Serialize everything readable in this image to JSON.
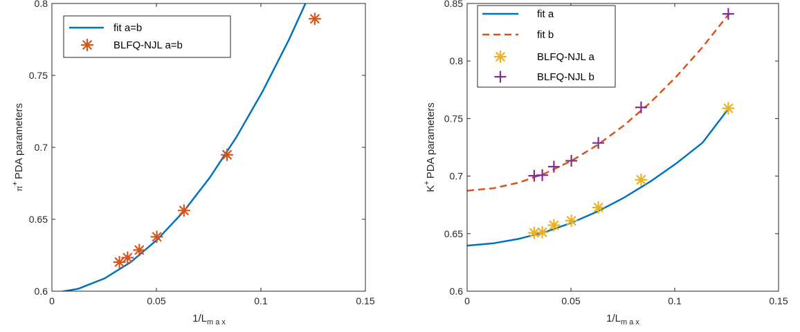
{
  "charts": [
    {
      "xlabel": {
        "main": "1/L",
        "sub": "m a x"
      },
      "ylabel": {
        "sup": "+",
        "main": "PDA parameters",
        "prefix": "π"
      },
      "xlim": [
        0,
        0.15
      ],
      "ylim": [
        0.6,
        0.8
      ],
      "xticks": [
        "0",
        "0.05",
        "0.1",
        "0.15"
      ],
      "yticks": [
        "0.6",
        "0.65",
        "0.7",
        "0.75",
        "0.8"
      ],
      "legend_position": "top-left"
    },
    {
      "xlabel": {
        "main": "1/L",
        "sub": "m a x"
      },
      "ylabel": {
        "sup": "+",
        "main": "PDA parameters",
        "prefix": "K"
      },
      "xlim": [
        0,
        0.15
      ],
      "ylim": [
        0.6,
        0.85
      ],
      "xticks": [
        "0",
        "0.05",
        "0.1",
        "0.15"
      ],
      "yticks": [
        "0.6",
        "0.65",
        "0.7",
        "0.75",
        "0.8",
        "0.85"
      ],
      "legend_position": "top-left"
    }
  ],
  "chart_data": [
    {
      "type": "scatter",
      "xlim": [
        0,
        0.15
      ],
      "ylim": [
        0.6,
        0.8
      ],
      "grid": false,
      "legend": "top-left",
      "series": [
        {
          "name": "fit a=b",
          "kind": "line",
          "style": "solid",
          "color": "#0072BD",
          "x": [
            0,
            0.0126,
            0.0252,
            0.0378,
            0.0504,
            0.063,
            0.0756,
            0.0882,
            0.1008,
            0.1134,
            0.126
          ],
          "y": [
            0.5985,
            0.6017,
            0.6089,
            0.6203,
            0.6358,
            0.6554,
            0.6791,
            0.7069,
            0.7388,
            0.7748,
            0.8149
          ]
        },
        {
          "name": "BLFQ-NJL a=b",
          "kind": "marker",
          "marker": "asterisk",
          "color": "#D95319",
          "x": [
            0.0323,
            0.0362,
            0.0418,
            0.0502,
            0.0632,
            0.0838,
            0.1258
          ],
          "y": [
            0.6202,
            0.6233,
            0.6286,
            0.6378,
            0.6561,
            0.6948,
            0.7893
          ]
        }
      ]
    },
    {
      "type": "scatter",
      "xlim": [
        0,
        0.15
      ],
      "ylim": [
        0.6,
        0.85
      ],
      "grid": false,
      "legend": "top-left",
      "series": [
        {
          "name": "fit a",
          "kind": "line",
          "style": "solid",
          "color": "#0072BD",
          "x": [
            0,
            0.0126,
            0.0252,
            0.0378,
            0.0504,
            0.063,
            0.0756,
            0.0882,
            0.1008,
            0.1134,
            0.126
          ],
          "y": [
            0.6396,
            0.6416,
            0.6456,
            0.6515,
            0.6595,
            0.6694,
            0.6813,
            0.6952,
            0.7111,
            0.729,
            0.7589
          ]
        },
        {
          "name": "fit b",
          "kind": "line",
          "style": "dashed",
          "color": "#D95319",
          "x": [
            0,
            0.0126,
            0.0252,
            0.0378,
            0.0504,
            0.063,
            0.0756,
            0.0882,
            0.1008,
            0.1134,
            0.126
          ],
          "y": [
            0.6873,
            0.6894,
            0.6945,
            0.7025,
            0.7134,
            0.7273,
            0.7441,
            0.7638,
            0.7865,
            0.8121,
            0.8407
          ]
        },
        {
          "name": "BLFQ-NJL a",
          "kind": "marker",
          "marker": "asterisk",
          "color": "#EDB120",
          "x": [
            0.0323,
            0.0362,
            0.0418,
            0.0502,
            0.0632,
            0.0838,
            0.1258
          ],
          "y": [
            0.6507,
            0.6512,
            0.6573,
            0.6612,
            0.6727,
            0.6968,
            0.7589
          ]
        },
        {
          "name": "BLFQ-NJL b",
          "kind": "marker",
          "marker": "plus",
          "color": "#7E2F8E",
          "x": [
            0.0323,
            0.0362,
            0.0418,
            0.0502,
            0.0632,
            0.0838,
            0.1258
          ],
          "y": [
            0.7003,
            0.7008,
            0.7082,
            0.7133,
            0.7288,
            0.7597,
            0.8409
          ]
        }
      ]
    }
  ]
}
